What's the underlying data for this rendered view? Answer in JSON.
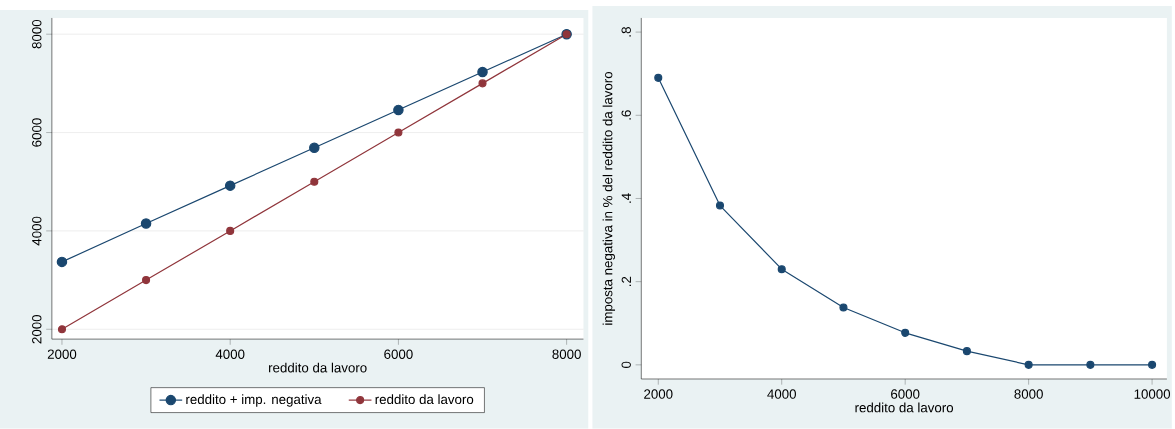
{
  "chart_data": [
    {
      "type": "line",
      "xlabel": "reddito da lavoro",
      "x": [
        2000,
        3000,
        4000,
        5000,
        6000,
        7000,
        8000
      ],
      "series": [
        {
          "name": "reddito + imp. negativa",
          "color": "#1a476f",
          "values": [
            3370,
            4150,
            4920,
            5690,
            6460,
            7230,
            8000
          ]
        },
        {
          "name": "reddito da lavoro",
          "color": "#90353b",
          "values": [
            2000,
            3000,
            4000,
            5000,
            6000,
            7000,
            8000
          ]
        }
      ],
      "xlim": [
        1880,
        8200
      ],
      "ylim": [
        1800,
        8330
      ],
      "xticks": [
        2000,
        4000,
        6000,
        8000
      ],
      "yticks": [
        2000,
        4000,
        6000,
        8000
      ],
      "grid": "y",
      "legend": "bottom",
      "marker": "circle"
    },
    {
      "type": "line",
      "xlabel": "reddito da lavoro",
      "ylabel": "imposta negativa in % del reddito da lavoro",
      "x": [
        2000,
        3000,
        4000,
        5000,
        6000,
        7000,
        8000,
        9000,
        10000
      ],
      "series": [
        {
          "color": "#1a476f",
          "values": [
            0.69,
            0.383,
            0.23,
            0.138,
            0.077,
            0.033,
            0,
            0,
            0
          ]
        }
      ],
      "xlim": [
        1725,
        10240
      ],
      "ylim": [
        -0.034,
        0.834
      ],
      "xticks": [
        2000,
        4000,
        6000,
        8000,
        10000
      ],
      "yticks": [
        0,
        {
          "value": 0.2,
          "label": ".2"
        },
        {
          "value": 0.4,
          "label": ".4"
        },
        {
          "value": 0.6,
          "label": ".6"
        },
        {
          "value": 0.8,
          "label": ".8"
        }
      ],
      "marker": "circle"
    }
  ]
}
